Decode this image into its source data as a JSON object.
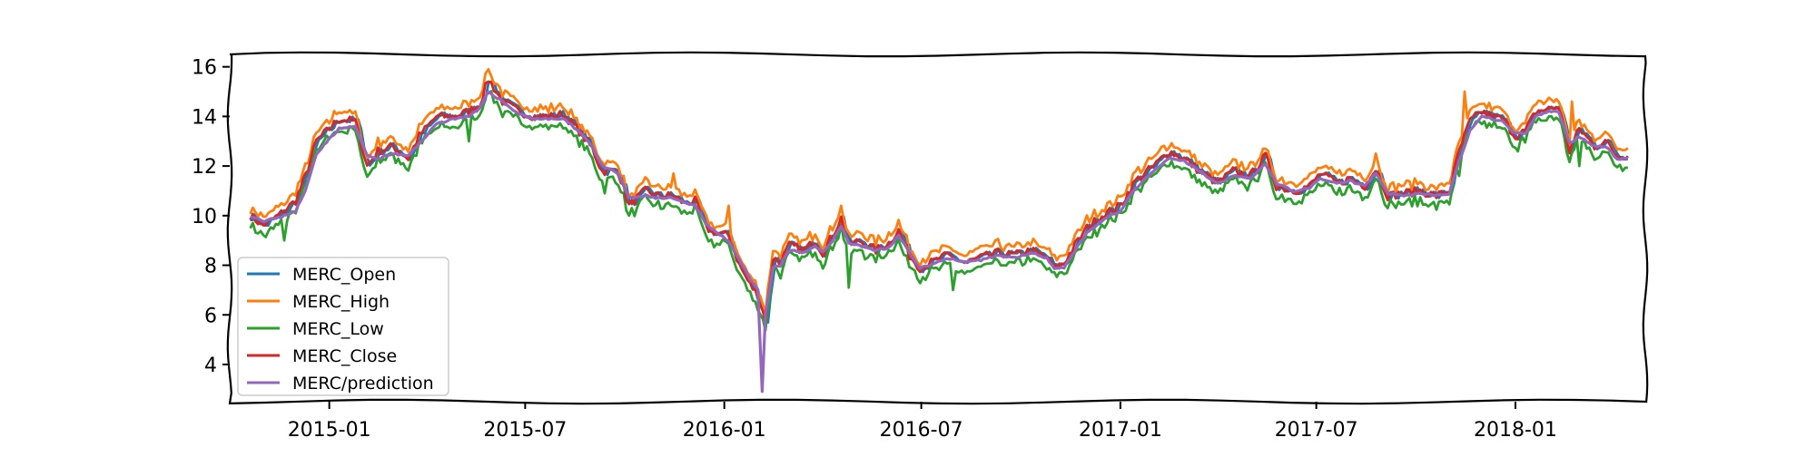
{
  "chart_data": {
    "type": "line",
    "title": "",
    "xlabel": "",
    "ylabel": "",
    "x_range": [
      "2014-10-01",
      "2018-05-01"
    ],
    "ylim": [
      2.5,
      16.5
    ],
    "x_ticks": [
      "2015-01",
      "2015-07",
      "2016-01",
      "2016-07",
      "2017-01",
      "2017-07",
      "2018-01"
    ],
    "y_ticks": [
      "4",
      "6",
      "8",
      "10",
      "12",
      "14",
      "16"
    ],
    "grid": false,
    "legend_position": "lower-left",
    "series": [
      {
        "name": "MERC_Open",
        "color": "#1f77b4"
      },
      {
        "name": "MERC_High",
        "color": "#ff7f0e"
      },
      {
        "name": "MERC_Low",
        "color": "#2ca02c"
      },
      {
        "name": "MERC_Close",
        "color": "#d62728"
      },
      {
        "name": "MERC/prediction",
        "color": "#9467bd"
      }
    ],
    "close_points": [
      [
        "2014-10-20",
        10.0
      ],
      [
        "2014-11-01",
        9.6
      ],
      [
        "2014-11-15",
        10.0
      ],
      [
        "2014-12-01",
        10.6
      ],
      [
        "2014-12-10",
        11.6
      ],
      [
        "2014-12-20",
        13.0
      ],
      [
        "2015-01-01",
        13.5
      ],
      [
        "2015-01-10",
        13.9
      ],
      [
        "2015-01-25",
        13.8
      ],
      [
        "2015-02-05",
        12.0
      ],
      [
        "2015-02-15",
        12.6
      ],
      [
        "2015-03-01",
        12.8
      ],
      [
        "2015-03-15",
        12.3
      ],
      [
        "2015-03-25",
        13.2
      ],
      [
        "2015-04-10",
        14.0
      ],
      [
        "2015-04-25",
        14.0
      ],
      [
        "2015-05-10",
        14.2
      ],
      [
        "2015-05-20",
        14.5
      ],
      [
        "2015-05-28",
        15.5
      ],
      [
        "2015-06-10",
        14.6
      ],
      [
        "2015-06-25",
        14.2
      ],
      [
        "2015-07-10",
        14.0
      ],
      [
        "2015-07-25",
        14.0
      ],
      [
        "2015-08-05",
        14.1
      ],
      [
        "2015-08-20",
        13.4
      ],
      [
        "2015-09-01",
        12.7
      ],
      [
        "2015-09-10",
        11.8
      ],
      [
        "2015-09-25",
        11.8
      ],
      [
        "2015-10-05",
        10.4
      ],
      [
        "2015-10-20",
        11.0
      ],
      [
        "2015-11-01",
        10.8
      ],
      [
        "2015-11-15",
        10.8
      ],
      [
        "2015-11-25",
        10.5
      ],
      [
        "2015-12-05",
        10.6
      ],
      [
        "2015-12-15",
        9.5
      ],
      [
        "2015-12-25",
        9.3
      ],
      [
        "2016-01-05",
        9.2
      ],
      [
        "2016-01-15",
        8.0
      ],
      [
        "2016-01-25",
        7.2
      ],
      [
        "2016-02-01",
        6.8
      ],
      [
        "2016-02-08",
        5.8
      ],
      [
        "2016-02-15",
        8.3
      ],
      [
        "2016-02-22",
        8.1
      ],
      [
        "2016-03-01",
        8.8
      ],
      [
        "2016-03-15",
        8.6
      ],
      [
        "2016-03-25",
        9.0
      ],
      [
        "2016-04-01",
        8.5
      ],
      [
        "2016-04-10",
        9.2
      ],
      [
        "2016-04-18",
        9.9
      ],
      [
        "2016-04-25",
        8.8
      ],
      [
        "2016-05-05",
        9.0
      ],
      [
        "2016-05-20",
        8.6
      ],
      [
        "2016-06-01",
        8.9
      ],
      [
        "2016-06-10",
        9.4
      ],
      [
        "2016-06-20",
        8.4
      ],
      [
        "2016-06-30",
        7.9
      ],
      [
        "2016-07-10",
        8.1
      ],
      [
        "2016-07-25",
        8.4
      ],
      [
        "2016-08-10",
        8.1
      ],
      [
        "2016-08-25",
        8.3
      ],
      [
        "2016-09-10",
        8.5
      ],
      [
        "2016-09-25",
        8.4
      ],
      [
        "2016-10-10",
        8.6
      ],
      [
        "2016-10-25",
        8.3
      ],
      [
        "2016-11-01",
        7.9
      ],
      [
        "2016-11-10",
        8.1
      ],
      [
        "2016-11-20",
        8.8
      ],
      [
        "2016-12-01",
        9.5
      ],
      [
        "2016-12-15",
        10.0
      ],
      [
        "2017-01-01",
        10.4
      ],
      [
        "2017-01-15",
        11.4
      ],
      [
        "2017-02-01",
        12.0
      ],
      [
        "2017-02-15",
        12.6
      ],
      [
        "2017-03-01",
        12.3
      ],
      [
        "2017-03-15",
        11.8
      ],
      [
        "2017-04-01",
        11.3
      ],
      [
        "2017-04-15",
        11.8
      ],
      [
        "2017-05-01",
        11.6
      ],
      [
        "2017-05-15",
        12.4
      ],
      [
        "2017-05-25",
        11.2
      ],
      [
        "2017-06-10",
        11.0
      ],
      [
        "2017-06-25",
        11.2
      ],
      [
        "2017-07-05",
        11.7
      ],
      [
        "2017-07-20",
        11.3
      ],
      [
        "2017-08-01",
        11.5
      ],
      [
        "2017-08-15",
        11.2
      ],
      [
        "2017-08-25",
        11.9
      ],
      [
        "2017-09-05",
        10.8
      ],
      [
        "2017-09-20",
        10.9
      ],
      [
        "2017-10-05",
        11.0
      ],
      [
        "2017-10-20",
        10.8
      ],
      [
        "2017-11-01",
        11.0
      ],
      [
        "2017-11-10",
        12.6
      ],
      [
        "2017-11-20",
        13.8
      ],
      [
        "2017-12-01",
        14.2
      ],
      [
        "2017-12-10",
        14.0
      ],
      [
        "2017-12-20",
        13.9
      ],
      [
        "2018-01-01",
        13.2
      ],
      [
        "2018-01-10",
        13.4
      ],
      [
        "2018-01-20",
        14.2
      ],
      [
        "2018-02-01",
        14.3
      ],
      [
        "2018-02-10",
        14.4
      ],
      [
        "2018-02-20",
        12.6
      ],
      [
        "2018-03-01",
        13.5
      ],
      [
        "2018-03-15",
        12.8
      ],
      [
        "2018-03-25",
        13.0
      ],
      [
        "2018-04-05",
        12.4
      ],
      [
        "2018-04-15",
        12.4
      ]
    ],
    "prediction_points": [
      [
        "2014-10-20",
        10.0
      ],
      [
        "2014-11-01",
        9.8
      ],
      [
        "2014-11-15",
        9.9
      ],
      [
        "2014-12-01",
        10.2
      ],
      [
        "2014-12-10",
        11.0
      ],
      [
        "2014-12-20",
        12.5
      ],
      [
        "2015-01-01",
        13.1
      ],
      [
        "2015-01-10",
        13.5
      ],
      [
        "2015-01-25",
        13.6
      ],
      [
        "2015-02-05",
        12.4
      ],
      [
        "2015-02-15",
        12.3
      ],
      [
        "2015-03-01",
        12.5
      ],
      [
        "2015-03-15",
        12.4
      ],
      [
        "2015-03-25",
        12.9
      ],
      [
        "2015-04-10",
        13.7
      ],
      [
        "2015-04-25",
        13.9
      ],
      [
        "2015-05-10",
        14.0
      ],
      [
        "2015-05-20",
        14.3
      ],
      [
        "2015-05-28",
        15.0
      ],
      [
        "2015-06-10",
        14.6
      ],
      [
        "2015-06-25",
        14.1
      ],
      [
        "2015-07-10",
        13.9
      ],
      [
        "2015-07-25",
        13.9
      ],
      [
        "2015-08-05",
        13.9
      ],
      [
        "2015-08-20",
        13.4
      ],
      [
        "2015-09-01",
        12.8
      ],
      [
        "2015-09-10",
        12.0
      ],
      [
        "2015-09-25",
        11.7
      ],
      [
        "2015-10-05",
        10.7
      ],
      [
        "2015-10-20",
        10.8
      ],
      [
        "2015-11-01",
        10.7
      ],
      [
        "2015-11-15",
        10.7
      ],
      [
        "2015-11-25",
        10.5
      ],
      [
        "2015-12-05",
        10.4
      ],
      [
        "2015-12-15",
        9.7
      ],
      [
        "2015-12-25",
        9.3
      ],
      [
        "2016-01-05",
        9.0
      ],
      [
        "2016-01-15",
        8.2
      ],
      [
        "2016-01-25",
        7.4
      ],
      [
        "2016-02-01",
        7.0
      ],
      [
        "2016-02-05",
        2.9
      ],
      [
        "2016-02-08",
        6.0
      ],
      [
        "2016-02-15",
        7.9
      ],
      [
        "2016-02-22",
        8.0
      ],
      [
        "2016-03-01",
        8.6
      ],
      [
        "2016-03-15",
        8.5
      ],
      [
        "2016-03-25",
        8.8
      ],
      [
        "2016-04-01",
        8.5
      ],
      [
        "2016-04-10",
        9.0
      ],
      [
        "2016-04-18",
        9.6
      ],
      [
        "2016-04-25",
        8.9
      ],
      [
        "2016-05-05",
        8.8
      ],
      [
        "2016-05-20",
        8.6
      ],
      [
        "2016-06-01",
        8.7
      ],
      [
        "2016-06-10",
        9.2
      ],
      [
        "2016-06-20",
        8.5
      ],
      [
        "2016-06-30",
        7.9
      ],
      [
        "2016-07-10",
        8.0
      ],
      [
        "2016-07-25",
        8.3
      ],
      [
        "2016-08-10",
        8.1
      ],
      [
        "2016-08-25",
        8.2
      ],
      [
        "2016-09-10",
        8.4
      ],
      [
        "2016-09-25",
        8.3
      ],
      [
        "2016-10-10",
        8.5
      ],
      [
        "2016-10-25",
        8.3
      ],
      [
        "2016-11-01",
        7.9
      ],
      [
        "2016-11-10",
        7.9
      ],
      [
        "2016-11-20",
        8.6
      ],
      [
        "2016-12-01",
        9.3
      ],
      [
        "2016-12-15",
        9.8
      ],
      [
        "2017-01-01",
        10.2
      ],
      [
        "2017-01-15",
        11.1
      ],
      [
        "2017-02-01",
        11.8
      ],
      [
        "2017-02-15",
        12.3
      ],
      [
        "2017-03-01",
        12.2
      ],
      [
        "2017-03-15",
        11.8
      ],
      [
        "2017-04-01",
        11.3
      ],
      [
        "2017-04-15",
        11.6
      ],
      [
        "2017-05-01",
        11.5
      ],
      [
        "2017-05-15",
        12.1
      ],
      [
        "2017-05-25",
        11.3
      ],
      [
        "2017-06-10",
        11.0
      ],
      [
        "2017-06-25",
        11.1
      ],
      [
        "2017-07-05",
        11.5
      ],
      [
        "2017-07-20",
        11.3
      ],
      [
        "2017-08-01",
        11.4
      ],
      [
        "2017-08-15",
        11.2
      ],
      [
        "2017-08-25",
        11.7
      ],
      [
        "2017-09-05",
        10.9
      ],
      [
        "2017-09-20",
        10.8
      ],
      [
        "2017-10-05",
        10.9
      ],
      [
        "2017-10-20",
        10.8
      ],
      [
        "2017-11-01",
        10.9
      ],
      [
        "2017-11-10",
        12.2
      ],
      [
        "2017-11-20",
        13.4
      ],
      [
        "2017-12-01",
        14.0
      ],
      [
        "2017-12-10",
        13.9
      ],
      [
        "2017-12-20",
        13.8
      ],
      [
        "2018-01-01",
        13.3
      ],
      [
        "2018-01-10",
        13.3
      ],
      [
        "2018-01-20",
        14.0
      ],
      [
        "2018-02-01",
        14.2
      ],
      [
        "2018-02-10",
        14.2
      ],
      [
        "2018-02-20",
        12.9
      ],
      [
        "2018-03-01",
        13.2
      ],
      [
        "2018-03-15",
        12.8
      ],
      [
        "2018-03-25",
        12.8
      ],
      [
        "2018-04-05",
        12.3
      ],
      [
        "2018-04-15",
        12.3
      ]
    ],
    "high_offsets": [
      0.25,
      0.4
    ],
    "low_offsets": [
      -0.3,
      -0.5
    ],
    "high_spikes": [
      [
        "2015-05-28",
        15.9
      ],
      [
        "2015-01-25",
        14.2
      ],
      [
        "2015-11-15",
        11.7
      ],
      [
        "2016-01-05",
        10.4
      ],
      [
        "2016-04-18",
        10.4
      ],
      [
        "2017-05-15",
        12.7
      ],
      [
        "2017-08-25",
        12.5
      ],
      [
        "2017-11-15",
        15.0
      ],
      [
        "2018-02-22",
        14.6
      ]
    ],
    "low_spikes": [
      [
        "2014-11-20",
        9.0
      ],
      [
        "2015-05-10",
        13.0
      ],
      [
        "2015-09-12",
        10.9
      ],
      [
        "2016-04-25",
        7.1
      ],
      [
        "2016-07-30",
        7.0
      ],
      [
        "2017-11-10",
        11.6
      ],
      [
        "2018-03-01",
        12.0
      ]
    ]
  }
}
